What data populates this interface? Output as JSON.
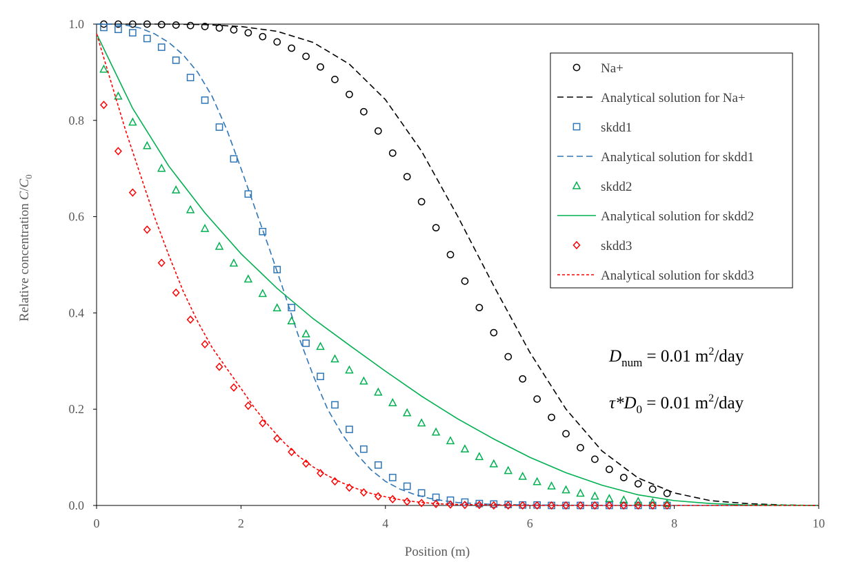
{
  "chart_data": {
    "type": "scatter",
    "xlabel": "Position (m)",
    "ylabel": "Relative concentration C/C0",
    "ylabel_parts": {
      "text": "Relative concentration ",
      "c": "C",
      "slash": "/",
      "c0": "C",
      "sub": "0"
    },
    "xlim": [
      0,
      10
    ],
    "ylim": [
      0,
      1
    ],
    "x_ticks": [
      "0",
      "2",
      "4",
      "6",
      "8",
      "10"
    ],
    "y_ticks": [
      "0.0",
      "0.2",
      "0.4",
      "0.6",
      "0.8",
      "1.0"
    ],
    "grid": false,
    "legend_position": "top-right",
    "series": [
      {
        "name": "Na+",
        "kind": "markers",
        "marker": "circle",
        "color": "#000000",
        "x": [
          0.1,
          0.3,
          0.5,
          0.7,
          0.9,
          1.1,
          1.3,
          1.5,
          1.7,
          1.9,
          2.1,
          2.3,
          2.5,
          2.7,
          2.9,
          3.1,
          3.3,
          3.5,
          3.7,
          3.9,
          4.1,
          4.3,
          4.5,
          4.7,
          4.9,
          5.1,
          5.3,
          5.5,
          5.7,
          5.9,
          6.1,
          6.3,
          6.5,
          6.7,
          6.9,
          7.1,
          7.3,
          7.5,
          7.7,
          7.9
        ],
        "y": [
          1.0,
          1.0,
          1.0,
          1.0,
          0.999,
          0.998,
          0.997,
          0.995,
          0.992,
          0.988,
          0.982,
          0.974,
          0.963,
          0.95,
          0.933,
          0.911,
          0.885,
          0.854,
          0.818,
          0.778,
          0.732,
          0.683,
          0.631,
          0.577,
          0.521,
          0.466,
          0.411,
          0.359,
          0.309,
          0.263,
          0.221,
          0.183,
          0.149,
          0.12,
          0.096,
          0.075,
          0.058,
          0.045,
          0.034,
          0.025
        ]
      },
      {
        "name": "Analytical solution for Na+",
        "kind": "line",
        "dash": "long",
        "color": "#000000",
        "x": [
          0,
          0.5,
          1,
          1.5,
          2,
          2.5,
          3,
          3.5,
          4,
          4.5,
          5,
          5.5,
          6,
          6.5,
          7,
          7.5,
          8,
          8.5,
          9,
          9.5,
          10
        ],
        "y": [
          1.0,
          1.0,
          1.0,
          0.999,
          0.995,
          0.985,
          0.962,
          0.917,
          0.843,
          0.736,
          0.601,
          0.456,
          0.318,
          0.2,
          0.113,
          0.057,
          0.026,
          0.01,
          0.004,
          0.001,
          0.0
        ]
      },
      {
        "name": "skdd1",
        "kind": "markers",
        "marker": "square",
        "color": "#2E75B6",
        "x": [
          0.1,
          0.3,
          0.5,
          0.7,
          0.9,
          1.1,
          1.3,
          1.5,
          1.7,
          1.9,
          2.1,
          2.3,
          2.5,
          2.7,
          2.9,
          3.1,
          3.3,
          3.5,
          3.7,
          3.9,
          4.1,
          4.3,
          4.5,
          4.7,
          4.9,
          5.1,
          5.3,
          5.5,
          5.7,
          5.9,
          6.1,
          6.3,
          6.5,
          6.7,
          6.9,
          7.1,
          7.3,
          7.5,
          7.7,
          7.9
        ],
        "y": [
          0.993,
          0.989,
          0.982,
          0.97,
          0.952,
          0.925,
          0.889,
          0.842,
          0.786,
          0.72,
          0.647,
          0.569,
          0.49,
          0.411,
          0.337,
          0.268,
          0.209,
          0.158,
          0.117,
          0.084,
          0.058,
          0.04,
          0.026,
          0.017,
          0.011,
          0.007,
          0.004,
          0.003,
          0.002,
          0.001,
          0.001,
          0.0,
          0.0,
          0.0,
          0.0,
          0.0,
          0.0,
          0.0,
          0.0,
          0.0
        ]
      },
      {
        "name": "Analytical solution for skdd1",
        "kind": "line",
        "dash": "long",
        "color": "#2E75B6",
        "x": [
          0,
          0.2,
          0.4,
          0.6,
          0.8,
          1.0,
          1.2,
          1.4,
          1.6,
          1.8,
          2.0,
          2.2,
          2.4,
          2.6,
          2.8,
          3.0,
          3.2,
          3.4,
          3.6,
          3.8,
          4.0,
          4.2,
          4.4,
          4.6,
          4.8,
          5.0,
          5.5,
          6,
          7,
          8,
          10
        ],
        "y": [
          1.0,
          1.0,
          0.998,
          0.992,
          0.98,
          0.962,
          0.936,
          0.9,
          0.85,
          0.782,
          0.7,
          0.615,
          0.53,
          0.442,
          0.35,
          0.27,
          0.2,
          0.148,
          0.107,
          0.074,
          0.05,
          0.034,
          0.023,
          0.015,
          0.01,
          0.006,
          0.002,
          0.001,
          0.0,
          0.0,
          0.0
        ]
      },
      {
        "name": "skdd2",
        "kind": "markers",
        "marker": "triangle",
        "color": "#00B050",
        "x": [
          0.1,
          0.3,
          0.5,
          0.7,
          0.9,
          1.1,
          1.3,
          1.5,
          1.7,
          1.9,
          2.1,
          2.3,
          2.5,
          2.7,
          2.9,
          3.1,
          3.3,
          3.5,
          3.7,
          3.9,
          4.1,
          4.3,
          4.5,
          4.7,
          4.9,
          5.1,
          5.3,
          5.5,
          5.7,
          5.9,
          6.1,
          6.3,
          6.5,
          6.7,
          6.9,
          7.1,
          7.3,
          7.5,
          7.7,
          7.9
        ],
        "y": [
          0.906,
          0.85,
          0.796,
          0.747,
          0.7,
          0.655,
          0.614,
          0.575,
          0.538,
          0.503,
          0.47,
          0.44,
          0.41,
          0.383,
          0.356,
          0.33,
          0.304,
          0.281,
          0.258,
          0.235,
          0.213,
          0.192,
          0.171,
          0.152,
          0.134,
          0.117,
          0.101,
          0.086,
          0.072,
          0.06,
          0.049,
          0.04,
          0.032,
          0.025,
          0.019,
          0.014,
          0.011,
          0.008,
          0.006,
          0.004
        ]
      },
      {
        "name": "Analytical solution for skdd2",
        "kind": "line",
        "dash": "solid",
        "color": "#00B050",
        "x": [
          0,
          0.5,
          1,
          1.5,
          2,
          2.5,
          3,
          3.5,
          4,
          4.5,
          5,
          5.5,
          6,
          6.5,
          7,
          7.5,
          8,
          8.5,
          9,
          10
        ],
        "y": [
          0.98,
          0.825,
          0.705,
          0.608,
          0.523,
          0.451,
          0.388,
          0.333,
          0.279,
          0.227,
          0.18,
          0.138,
          0.1,
          0.068,
          0.042,
          0.022,
          0.01,
          0.004,
          0.001,
          0.0
        ]
      },
      {
        "name": "skdd3",
        "kind": "markers",
        "marker": "diamond",
        "color": "#FF0000",
        "x": [
          0.1,
          0.3,
          0.5,
          0.7,
          0.9,
          1.1,
          1.3,
          1.5,
          1.7,
          1.9,
          2.1,
          2.3,
          2.5,
          2.7,
          2.9,
          3.1,
          3.3,
          3.5,
          3.7,
          3.9,
          4.1,
          4.3,
          4.5,
          4.7,
          4.9,
          5.1,
          5.3,
          5.5,
          5.7,
          5.9,
          6.1,
          6.3,
          6.5,
          6.7,
          6.9,
          7.1,
          7.3,
          7.5,
          7.7,
          7.9
        ],
        "y": [
          0.832,
          0.736,
          0.65,
          0.573,
          0.504,
          0.442,
          0.386,
          0.335,
          0.288,
          0.245,
          0.207,
          0.171,
          0.139,
          0.111,
          0.087,
          0.067,
          0.05,
          0.037,
          0.027,
          0.019,
          0.013,
          0.008,
          0.005,
          0.003,
          0.002,
          0.001,
          0.001,
          0.0,
          0.0,
          0.0,
          0.0,
          0.0,
          0.0,
          0.0,
          0.0,
          0.0,
          0.0,
          0.0,
          0.0,
          0.0
        ]
      },
      {
        "name": "Analytical solution for skdd3",
        "kind": "line",
        "dash": "short",
        "color": "#FF0000",
        "x": [
          0,
          0.2,
          0.4,
          0.6,
          0.8,
          1.0,
          1.2,
          1.4,
          1.6,
          1.8,
          2.0,
          2.2,
          2.4,
          2.6,
          2.8,
          3.0,
          3.2,
          3.4,
          3.6,
          3.8,
          4.0,
          4.2,
          4.4,
          4.6,
          4.8,
          5.0,
          5.5,
          6,
          7,
          8,
          10
        ],
        "y": [
          0.98,
          0.88,
          0.78,
          0.69,
          0.6,
          0.52,
          0.445,
          0.382,
          0.328,
          0.285,
          0.243,
          0.2,
          0.163,
          0.13,
          0.102,
          0.08,
          0.062,
          0.047,
          0.035,
          0.025,
          0.018,
          0.012,
          0.008,
          0.005,
          0.003,
          0.002,
          0.001,
          0.0,
          0.0,
          0.0,
          0.0
        ]
      }
    ],
    "annotations": [
      {
        "id": "dnum",
        "main": "D",
        "sub": "num",
        "rest": " = 0.01 m",
        "sup": "2",
        "tail": "/day"
      },
      {
        "id": "tau",
        "main": "τ*D",
        "sub": "0",
        "rest": " = 0.01 m",
        "sup": "2",
        "tail": "/day"
      }
    ]
  }
}
